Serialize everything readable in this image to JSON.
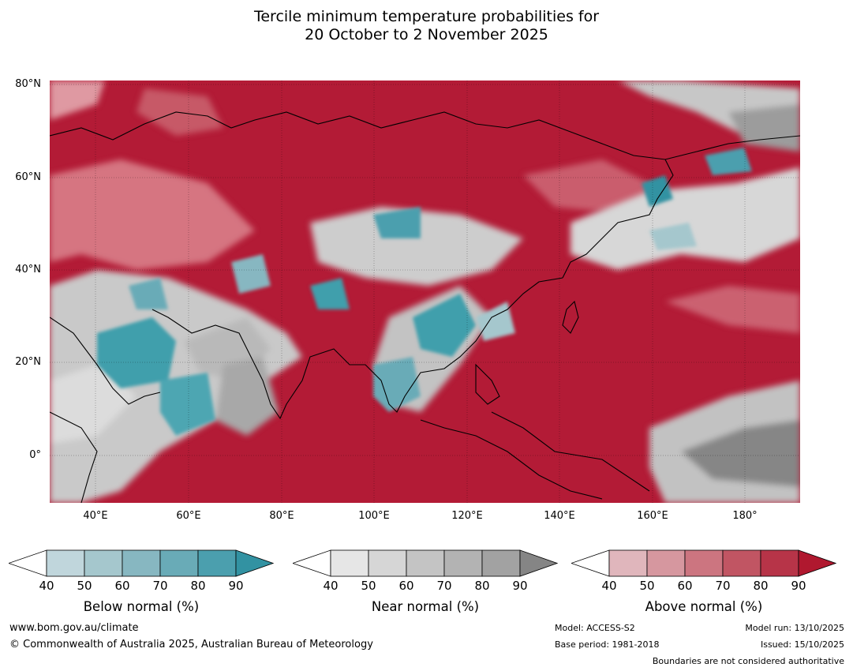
{
  "title": {
    "line1": "Tercile minimum temperature probabilities for",
    "line2": "20 October to 2 November 2025"
  },
  "map": {
    "lat_labels": [
      "80°N",
      "60°N",
      "40°N",
      "20°N",
      "0°"
    ],
    "lon_labels": [
      "40°E",
      "60°E",
      "80°E",
      "100°E",
      "120°E",
      "140°E",
      "160°E",
      "180°"
    ],
    "colors": {
      "above_dominant": "#b31b36",
      "near_grey": "#c6c6c6",
      "below_teal": "#3f9fac"
    }
  },
  "colorbars": [
    {
      "name": "below",
      "label": "Below normal (%)",
      "ticks": [
        "40",
        "50",
        "60",
        "70",
        "80",
        "90"
      ],
      "colors": [
        "#c0d6dc",
        "#a5c7cd",
        "#87b7c1",
        "#69abb7",
        "#4b9fae",
        "#3292a2"
      ]
    },
    {
      "name": "near",
      "label": "Near normal (%)",
      "ticks": [
        "40",
        "50",
        "60",
        "70",
        "80",
        "90"
      ],
      "colors": [
        "#e6e6e6",
        "#d6d6d6",
        "#c4c4c4",
        "#b3b3b3",
        "#a2a2a2",
        "#858585"
      ]
    },
    {
      "name": "above",
      "label": "Above normal (%)",
      "ticks": [
        "40",
        "50",
        "60",
        "70",
        "80",
        "90"
      ],
      "colors": [
        "#e0b6bc",
        "#d6979f",
        "#cc7580",
        "#c15563",
        "#b73448",
        "#b0182f"
      ]
    }
  ],
  "footer": {
    "website": "www.bom.gov.au/climate",
    "copyright": "© Commonwealth of Australia 2025, Australian Bureau of Meteorology",
    "model": "Model: ACCESS-S2",
    "base_period": "Base period: 1981-2018",
    "model_run": "Model run: 13/10/2025",
    "issued": "Issued: 15/10/2025",
    "disclaimer": "Boundaries are not considered authoritative"
  }
}
